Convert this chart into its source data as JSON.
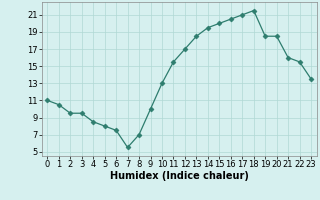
{
  "x": [
    0,
    1,
    2,
    3,
    4,
    5,
    6,
    7,
    8,
    9,
    10,
    11,
    12,
    13,
    14,
    15,
    16,
    17,
    18,
    19,
    20,
    21,
    22,
    23
  ],
  "y": [
    11,
    10.5,
    9.5,
    9.5,
    8.5,
    8,
    7.5,
    5.5,
    7,
    10,
    13,
    15.5,
    17,
    18.5,
    19.5,
    20,
    20.5,
    21,
    21.5,
    18.5,
    18.5,
    16,
    15.5,
    13.5
  ],
  "line_color": "#2e7d6e",
  "marker": "D",
  "marker_size": 2.5,
  "bg_color": "#d6f0ef",
  "grid_color": "#b0d8d4",
  "xlabel": "Humidex (Indice chaleur)",
  "xlabel_fontsize": 7,
  "ytick_labels": [
    "5",
    "7",
    "9",
    "11",
    "13",
    "15",
    "17",
    "19",
    "21"
  ],
  "ytick_vals": [
    5,
    7,
    9,
    11,
    13,
    15,
    17,
    19,
    21
  ],
  "xtick_vals": [
    0,
    1,
    2,
    3,
    4,
    5,
    6,
    7,
    8,
    9,
    10,
    11,
    12,
    13,
    14,
    15,
    16,
    17,
    18,
    19,
    20,
    21,
    22,
    23
  ],
  "ylim": [
    4.5,
    22.5
  ],
  "xlim": [
    -0.5,
    23.5
  ],
  "tick_fontsize": 6,
  "spine_color": "#888888"
}
